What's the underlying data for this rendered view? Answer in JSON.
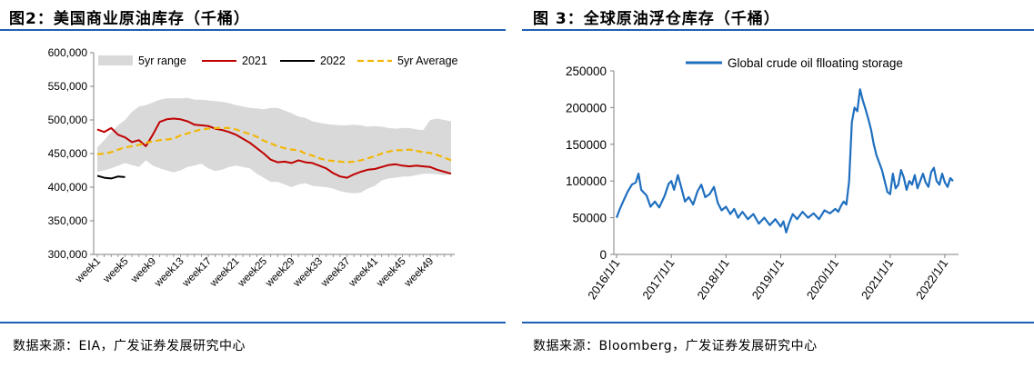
{
  "left": {
    "title": "图2：美国商业原油库存（千桶）",
    "source": "数据来源：EIA，广发证券发展研究中心",
    "chart_data": {
      "type": "line",
      "title": "",
      "xlabel": "",
      "ylabel": "",
      "ylim": [
        300000,
        600000
      ],
      "yticks": [
        300000,
        350000,
        400000,
        450000,
        500000,
        550000,
        600000
      ],
      "ytick_labels": [
        "300,000",
        "350,000",
        "400,000",
        "450,000",
        "500,000",
        "550,000",
        "600,000"
      ],
      "xtick_labels": [
        "week1",
        "week5",
        "week9",
        "week13",
        "week17",
        "week21",
        "week25",
        "week29",
        "week33",
        "week37",
        "week41",
        "week45",
        "week49"
      ],
      "legend": [
        "5yr range",
        "2021",
        "2022",
        "5yr Average"
      ],
      "legend_position": "top",
      "weeks": 52,
      "range_low": [
        423000,
        425000,
        428000,
        432000,
        436000,
        433000,
        430000,
        440000,
        432000,
        428000,
        425000,
        422000,
        425000,
        430000,
        432000,
        435000,
        428000,
        424000,
        426000,
        430000,
        432000,
        430000,
        428000,
        420000,
        414000,
        408000,
        408000,
        404000,
        400000,
        404000,
        406000,
        402000,
        401000,
        400000,
        398000,
        394000,
        392000,
        391000,
        392000,
        398000,
        402000,
        410000,
        413000,
        414000,
        416000,
        416000,
        418000,
        420000,
        420000,
        419000,
        418000,
        419000
      ],
      "range_high": [
        459000,
        470000,
        482000,
        492000,
        500000,
        512000,
        520000,
        522000,
        526000,
        530000,
        532000,
        532000,
        532000,
        533000,
        530000,
        530000,
        529000,
        528000,
        527000,
        525000,
        522000,
        520000,
        518000,
        517000,
        516000,
        518000,
        518000,
        514000,
        510000,
        505000,
        503000,
        498000,
        496000,
        494000,
        493000,
        492000,
        492000,
        493000,
        492000,
        490000,
        491000,
        490000,
        488000,
        487000,
        488000,
        488000,
        486000,
        485000,
        500000,
        502000,
        500000,
        498000
      ],
      "series": [
        {
          "name": "2021",
          "color": "#c00000",
          "values": [
            486000,
            482000,
            488000,
            478000,
            474000,
            467000,
            470000,
            461000,
            478000,
            497000,
            501000,
            502000,
            501000,
            498000,
            493000,
            492000,
            491000,
            487000,
            485000,
            482000,
            478000,
            472000,
            466000,
            458000,
            450000,
            441000,
            437000,
            438000,
            436000,
            440000,
            437000,
            436000,
            432000,
            428000,
            421000,
            416000,
            414000,
            419000,
            423000,
            426000,
            427000,
            430000,
            433000,
            434000,
            432000,
            431000,
            432000,
            431000,
            430000,
            426000,
            423000,
            420000
          ]
        },
        {
          "name": "2022",
          "color": "#000000",
          "values": [
            417000,
            414000,
            413000,
            416000,
            415000
          ]
        },
        {
          "name": "5yr Average",
          "color": "#f2b705",
          "dashed": true,
          "values": [
            449000,
            450000,
            452000,
            456000,
            459000,
            461000,
            463000,
            466000,
            468000,
            470000,
            471000,
            472000,
            477000,
            480000,
            483000,
            486000,
            487000,
            488000,
            488000,
            488000,
            486000,
            482000,
            479000,
            475000,
            469000,
            465000,
            461000,
            458000,
            456000,
            455000,
            450000,
            447000,
            443000,
            440000,
            439000,
            438000,
            437000,
            438000,
            440000,
            443000,
            446000,
            450000,
            453000,
            455000,
            455000,
            456000,
            454000,
            452000,
            451000,
            448000,
            444000,
            440000
          ]
        }
      ]
    }
  },
  "right": {
    "title": "图 3：全球原油浮仓库存（千桶）",
    "source": "数据来源：Bloomberg，广发证券发展研究中心",
    "chart_data": {
      "type": "line",
      "title": "",
      "xlabel": "",
      "ylabel": "",
      "ylim": [
        0,
        250000
      ],
      "yticks": [
        0,
        50000,
        100000,
        150000,
        200000,
        250000
      ],
      "ytick_labels": [
        "0",
        "50000",
        "100000",
        "150000",
        "200000",
        "250000"
      ],
      "xtick_labels": [
        "2016/1/1",
        "2017/1/1",
        "2018/1/1",
        "2019/1/1",
        "2020/1/1",
        "2021/1/1",
        "2022/1/1"
      ],
      "x_range_years": [
        2016.0,
        2022.2
      ],
      "legend": [
        "Global crude oil flloating storage"
      ],
      "legend_position": "top",
      "series": [
        {
          "name": "Global crude oil flloating storage",
          "color": "#1f6fbf",
          "points": [
            [
              2016.0,
              50000
            ],
            [
              2016.06,
              62000
            ],
            [
              2016.12,
              72000
            ],
            [
              2016.2,
              85000
            ],
            [
              2016.28,
              95000
            ],
            [
              2016.35,
              98000
            ],
            [
              2016.4,
              110000
            ],
            [
              2016.45,
              88000
            ],
            [
              2016.55,
              80000
            ],
            [
              2016.62,
              65000
            ],
            [
              2016.7,
              72000
            ],
            [
              2016.78,
              64000
            ],
            [
              2016.88,
              80000
            ],
            [
              2016.95,
              96000
            ],
            [
              2017.0,
              100000
            ],
            [
              2017.05,
              88000
            ],
            [
              2017.12,
              108000
            ],
            [
              2017.18,
              92000
            ],
            [
              2017.25,
              72000
            ],
            [
              2017.32,
              78000
            ],
            [
              2017.4,
              68000
            ],
            [
              2017.48,
              86000
            ],
            [
              2017.55,
              95000
            ],
            [
              2017.62,
              78000
            ],
            [
              2017.7,
              82000
            ],
            [
              2017.78,
              92000
            ],
            [
              2017.85,
              70000
            ],
            [
              2017.92,
              60000
            ],
            [
              2018.0,
              65000
            ],
            [
              2018.08,
              55000
            ],
            [
              2018.15,
              62000
            ],
            [
              2018.22,
              50000
            ],
            [
              2018.3,
              58000
            ],
            [
              2018.4,
              48000
            ],
            [
              2018.5,
              55000
            ],
            [
              2018.6,
              42000
            ],
            [
              2018.7,
              50000
            ],
            [
              2018.8,
              40000
            ],
            [
              2018.9,
              48000
            ],
            [
              2019.0,
              38000
            ],
            [
              2019.05,
              45000
            ],
            [
              2019.1,
              30000
            ],
            [
              2019.15,
              42000
            ],
            [
              2019.22,
              55000
            ],
            [
              2019.3,
              48000
            ],
            [
              2019.4,
              58000
            ],
            [
              2019.5,
              50000
            ],
            [
              2019.6,
              56000
            ],
            [
              2019.7,
              48000
            ],
            [
              2019.8,
              60000
            ],
            [
              2019.9,
              56000
            ],
            [
              2020.0,
              62000
            ],
            [
              2020.05,
              58000
            ],
            [
              2020.1,
              66000
            ],
            [
              2020.15,
              72000
            ],
            [
              2020.2,
              68000
            ],
            [
              2020.25,
              100000
            ],
            [
              2020.3,
              180000
            ],
            [
              2020.35,
              200000
            ],
            [
              2020.4,
              195000
            ],
            [
              2020.45,
              225000
            ],
            [
              2020.5,
              210000
            ],
            [
              2020.55,
              198000
            ],
            [
              2020.6,
              185000
            ],
            [
              2020.65,
              170000
            ],
            [
              2020.7,
              150000
            ],
            [
              2020.75,
              135000
            ],
            [
              2020.8,
              125000
            ],
            [
              2020.85,
              115000
            ],
            [
              2020.9,
              100000
            ],
            [
              2020.95,
              85000
            ],
            [
              2021.0,
              82000
            ],
            [
              2021.05,
              110000
            ],
            [
              2021.1,
              90000
            ],
            [
              2021.15,
              95000
            ],
            [
              2021.2,
              115000
            ],
            [
              2021.25,
              105000
            ],
            [
              2021.3,
              88000
            ],
            [
              2021.35,
              100000
            ],
            [
              2021.4,
              95000
            ],
            [
              2021.45,
              108000
            ],
            [
              2021.5,
              90000
            ],
            [
              2021.55,
              100000
            ],
            [
              2021.6,
              110000
            ],
            [
              2021.65,
              98000
            ],
            [
              2021.7,
              92000
            ],
            [
              2021.75,
              112000
            ],
            [
              2021.8,
              118000
            ],
            [
              2021.85,
              100000
            ],
            [
              2021.9,
              95000
            ],
            [
              2021.95,
              110000
            ],
            [
              2022.0,
              98000
            ],
            [
              2022.05,
              92000
            ],
            [
              2022.1,
              104000
            ],
            [
              2022.15,
              100000
            ]
          ]
        }
      ]
    }
  }
}
